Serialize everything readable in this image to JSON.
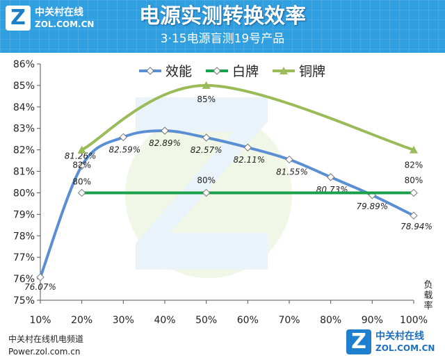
{
  "header": {
    "logo_mark": "Z",
    "logo_cn": "中关村在线",
    "logo_en": "ZOL.COM.CN",
    "title": "电源实测转换效率",
    "subtitle": "3·15电源盲测19号产品"
  },
  "footer": {
    "line1": "中关村在线机电频道",
    "line2": "Power.zol.com.cn",
    "brand_mark": "Z",
    "brand_cn": "中关村在线",
    "brand_en": "ZOL.COM.CN"
  },
  "chart_data": {
    "type": "line",
    "categories": [
      "10%",
      "20%",
      "30%",
      "40%",
      "50%",
      "60%",
      "70%",
      "80%",
      "90%",
      "100%"
    ],
    "x_unit_label": "负载率",
    "ylim": [
      75,
      86
    ],
    "yticks": [
      "75%",
      "76%",
      "77%",
      "78%",
      "79%",
      "80%",
      "81%",
      "82%",
      "83%",
      "84%",
      "85%",
      "86%"
    ],
    "legend_position": "top-center",
    "grid": false,
    "series": [
      {
        "name": "效能",
        "color": "#5b8fd4",
        "marker": "diamond",
        "smooth": true,
        "values": [
          76.07,
          81.26,
          82.59,
          82.89,
          82.57,
          82.11,
          81.55,
          80.73,
          79.89,
          78.94
        ],
        "labels": [
          "76.07%",
          "81.26%",
          "82.59%",
          "82.89%",
          "82.57%",
          "82.11%",
          "81.55%",
          "80.73%",
          "79.89%",
          "78.94%"
        ]
      },
      {
        "name": "白牌",
        "color": "#19a04a",
        "marker": "diamond",
        "smooth": false,
        "x": [
          "20%",
          "50%",
          "100%"
        ],
        "values": [
          80,
          80,
          80
        ],
        "labels": [
          "80%",
          "80%",
          "80%"
        ]
      },
      {
        "name": "铜牌",
        "color": "#9bbb59",
        "marker": "triangle",
        "smooth": true,
        "x": [
          "20%",
          "50%",
          "100%"
        ],
        "values": [
          82,
          85,
          82
        ],
        "labels": [
          "82%",
          "85%",
          "82%"
        ]
      }
    ]
  }
}
